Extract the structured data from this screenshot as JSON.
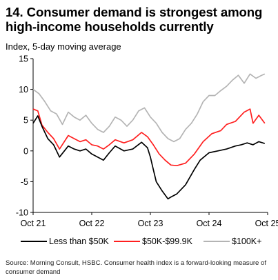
{
  "title": "14. Consumer demand is strongest among high-income households currently",
  "subtitle": "Index, 5-day moving average",
  "source": "Source: Morning Consult, HSBC. Consumer health index is a forward-looking measure of consumer demand",
  "colors": {
    "low": "#000000",
    "mid": "#ff1f1f",
    "high": "#b4b4b4"
  },
  "chart_data": {
    "type": "line",
    "title": "14. Consumer demand is strongest among high-income households currently",
    "ylabel": "Index, 5-day moving average",
    "ylim": [
      -10,
      15
    ],
    "yticks": [
      "15",
      "10",
      "5",
      "0",
      "-5",
      "-10"
    ],
    "yticks_values": [
      15,
      10,
      5,
      0,
      -5,
      -10
    ],
    "xticks": [
      "Oct 21",
      "Oct 22",
      "Oct 23",
      "Oct 24",
      "Oct 25"
    ],
    "grid": false,
    "legend_position": "bottom",
    "series": [
      {
        "name": "Less than $50K",
        "color": "#000000",
        "x": [
          2021.75,
          2021.83,
          2021.9,
          2022.0,
          2022.1,
          2022.2,
          2022.35,
          2022.45,
          2022.55,
          2022.65,
          2022.75,
          2022.85,
          2022.95,
          2023.05,
          2023.15,
          2023.3,
          2023.45,
          2023.6,
          2023.7,
          2023.75,
          2023.8,
          2023.85,
          2023.95,
          2024.05,
          2024.1,
          2024.2,
          2024.35,
          2024.5,
          2024.6,
          2024.75,
          2024.9,
          2025.05,
          2025.2,
          2025.3,
          2025.4,
          2025.5,
          2025.6,
          2025.7
        ],
        "values": [
          4.5,
          5.7,
          4.0,
          2.0,
          1.0,
          -1.0,
          0.8,
          0.3,
          0.0,
          0.3,
          -0.5,
          -1.0,
          -1.5,
          -0.3,
          0.8,
          0.0,
          0.3,
          1.4,
          0.5,
          -1.0,
          -3.0,
          -5.0,
          -6.5,
          -7.8,
          -7.5,
          -7.0,
          -5.5,
          -3.0,
          -1.5,
          -0.3,
          0.0,
          0.3,
          0.8,
          1.0,
          1.3,
          1.0,
          1.5,
          1.2
        ]
      },
      {
        "name": "$50K-$99.9K",
        "color": "#ff1f1f",
        "x": [
          2021.75,
          2021.83,
          2021.9,
          2022.0,
          2022.1,
          2022.2,
          2022.35,
          2022.45,
          2022.55,
          2022.65,
          2022.75,
          2022.85,
          2022.95,
          2023.05,
          2023.15,
          2023.3,
          2023.45,
          2023.6,
          2023.7,
          2023.8,
          2023.9,
          2024.0,
          2024.1,
          2024.2,
          2024.35,
          2024.5,
          2024.65,
          2024.8,
          2024.95,
          2025.05,
          2025.2,
          2025.35,
          2025.45,
          2025.5,
          2025.6,
          2025.7
        ],
        "values": [
          6.8,
          6.5,
          4.2,
          3.0,
          2.0,
          0.3,
          2.5,
          2.0,
          1.5,
          1.8,
          1.0,
          0.8,
          0.3,
          1.0,
          1.8,
          1.3,
          1.8,
          3.0,
          2.3,
          1.0,
          -0.5,
          -1.5,
          -2.3,
          -2.4,
          -2.0,
          -0.5,
          1.5,
          2.8,
          3.3,
          4.3,
          4.8,
          6.3,
          6.8,
          4.5,
          5.8,
          4.5
        ]
      },
      {
        "name": "$100K+",
        "color": "#b4b4b4",
        "x": [
          2021.75,
          2021.85,
          2021.95,
          2022.05,
          2022.15,
          2022.25,
          2022.35,
          2022.45,
          2022.55,
          2022.65,
          2022.75,
          2022.85,
          2022.95,
          2023.05,
          2023.15,
          2023.25,
          2023.35,
          2023.45,
          2023.55,
          2023.65,
          2023.75,
          2023.85,
          2023.95,
          2024.05,
          2024.15,
          2024.25,
          2024.35,
          2024.45,
          2024.55,
          2024.65,
          2024.75,
          2024.85,
          2024.95,
          2025.05,
          2025.15,
          2025.25,
          2025.35,
          2025.45,
          2025.55,
          2025.65,
          2025.7
        ],
        "values": [
          10.0,
          9.3,
          8.0,
          6.5,
          6.0,
          4.3,
          6.3,
          5.5,
          5.0,
          5.8,
          4.5,
          3.5,
          3.0,
          4.0,
          5.5,
          5.0,
          4.0,
          5.0,
          6.5,
          7.0,
          5.5,
          4.5,
          3.0,
          2.0,
          1.5,
          2.0,
          3.5,
          4.5,
          6.0,
          8.0,
          9.0,
          9.0,
          9.8,
          10.5,
          11.5,
          12.3,
          11.0,
          12.5,
          11.8,
          12.3,
          12.5
        ]
      }
    ]
  }
}
